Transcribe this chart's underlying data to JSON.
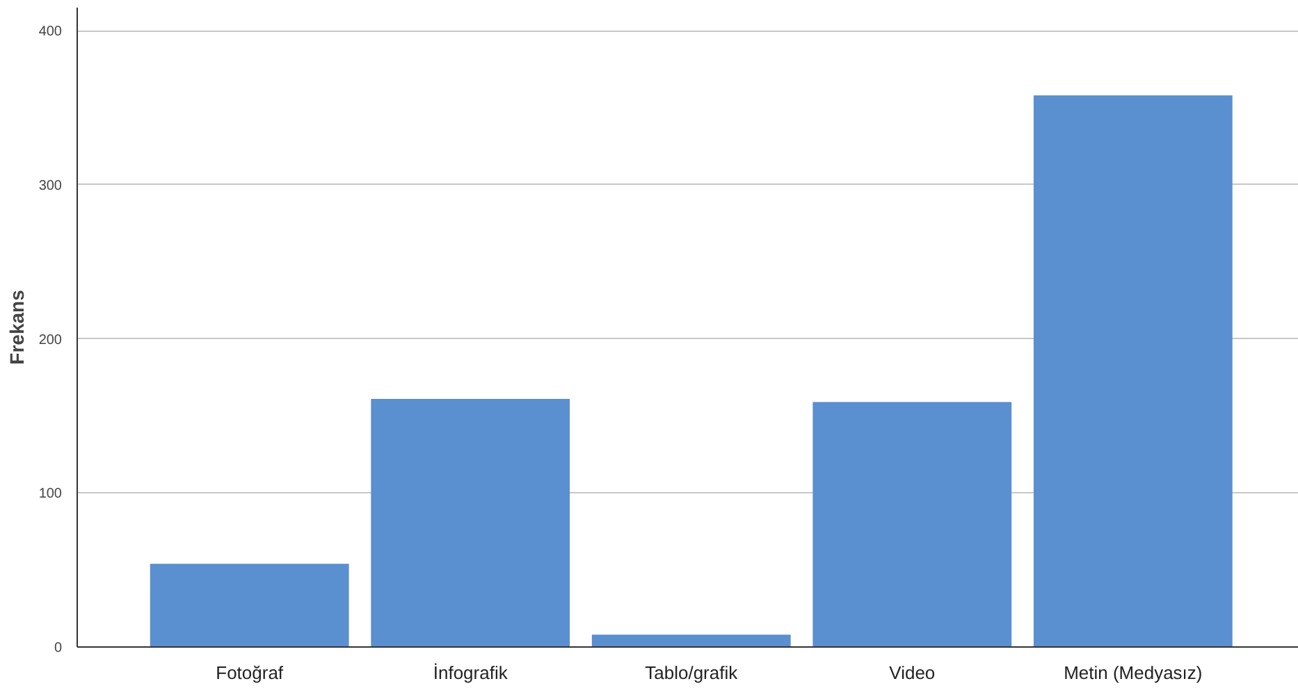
{
  "chart_data": {
    "type": "bar",
    "ylabel": "Frekans",
    "categories": [
      "Fotoğraf",
      "İnfografik",
      "Tablo/grafik",
      "Video",
      "Metin (Medyasız)"
    ],
    "values": [
      54,
      161,
      8,
      159,
      358
    ],
    "color": "#5a8fd0",
    "ylim": [
      0,
      415
    ],
    "yticks": [
      0,
      100,
      200,
      300,
      400
    ],
    "grid": "y"
  }
}
